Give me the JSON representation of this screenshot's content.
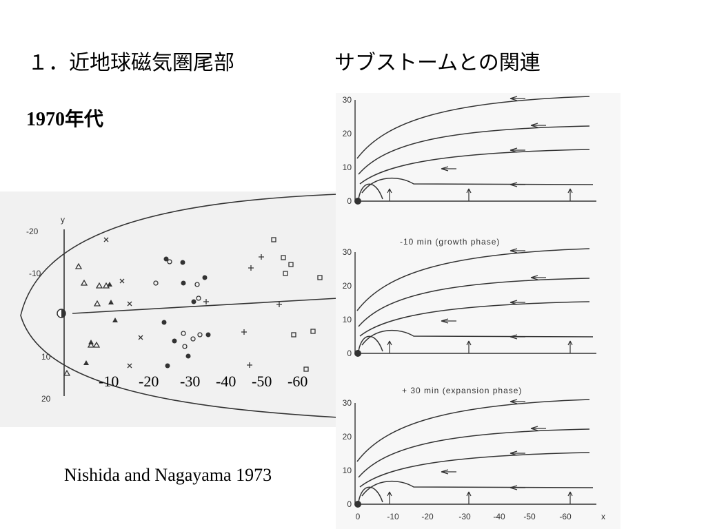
{
  "title": {
    "left": "１．近地球磁気圏尾部",
    "right": "サブストームとの関連"
  },
  "subtitle": "1970年代",
  "left_figure": {
    "y_axis_label": "y",
    "y_ticks": [
      "-20",
      "-10",
      "10",
      "20"
    ],
    "x_labels": [
      "-10",
      "-20",
      "-30",
      "-40",
      "-50",
      "-60"
    ]
  },
  "right_figure": {
    "y_ticks": [
      "30",
      "20",
      "10",
      "0"
    ],
    "captions": [
      "-10 min (growth phase)",
      "+ 30 min (expansion phase)"
    ],
    "x_ticks": [
      "0",
      "-10",
      "-20",
      "-30",
      "-40",
      "-50",
      "-60"
    ],
    "x_axis_label": "x"
  },
  "citation": "Nishida and Nagayama 1973"
}
